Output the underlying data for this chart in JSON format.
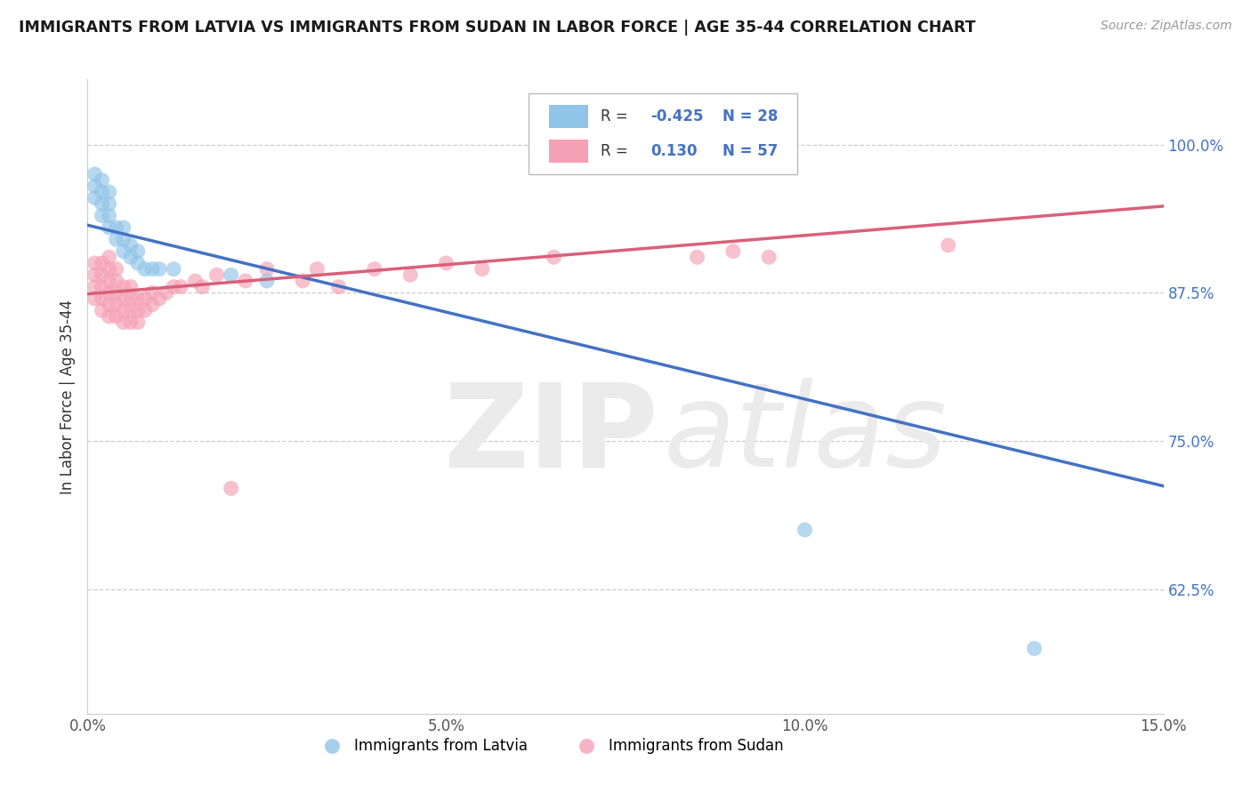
{
  "title": "IMMIGRANTS FROM LATVIA VS IMMIGRANTS FROM SUDAN IN LABOR FORCE | AGE 35-44 CORRELATION CHART",
  "source": "Source: ZipAtlas.com",
  "ylabel": "In Labor Force | Age 35-44",
  "xlim": [
    0.0,
    0.15
  ],
  "ylim": [
    0.52,
    1.055
  ],
  "yticks": [
    0.625,
    0.75,
    0.875,
    1.0
  ],
  "ytick_labels": [
    "62.5%",
    "75.0%",
    "87.5%",
    "100.0%"
  ],
  "xticks": [
    0.0,
    0.05,
    0.1,
    0.15
  ],
  "xtick_labels": [
    "0.0%",
    "5.0%",
    "10.0%",
    "15.0%"
  ],
  "latvia_color": "#90C4E8",
  "sudan_color": "#F4A0B5",
  "latvia_line_color": "#4472C4",
  "sudan_line_color": "#D9607A",
  "latvia_R": -0.425,
  "latvia_N": 28,
  "sudan_R": 0.13,
  "sudan_N": 57,
  "background_color": "#FFFFFF",
  "grid_color": "#CCCCCC",
  "lv_line_x0": 0.0,
  "lv_line_y0": 0.932,
  "lv_line_x1": 0.15,
  "lv_line_y1": 0.712,
  "sd_line_x0": 0.0,
  "sd_line_y0": 0.874,
  "sd_line_x1": 0.15,
  "sd_line_y1": 0.948,
  "lv_x": [
    0.001,
    0.001,
    0.001,
    0.002,
    0.002,
    0.002,
    0.002,
    0.003,
    0.003,
    0.003,
    0.003,
    0.004,
    0.004,
    0.005,
    0.005,
    0.005,
    0.006,
    0.006,
    0.007,
    0.007,
    0.008,
    0.009,
    0.01,
    0.012,
    0.02,
    0.025,
    0.1,
    0.132
  ],
  "lv_y": [
    0.955,
    0.965,
    0.975,
    0.94,
    0.95,
    0.96,
    0.97,
    0.93,
    0.94,
    0.95,
    0.96,
    0.92,
    0.93,
    0.91,
    0.92,
    0.93,
    0.905,
    0.915,
    0.9,
    0.91,
    0.895,
    0.895,
    0.895,
    0.895,
    0.89,
    0.885,
    0.675,
    0.575
  ],
  "sd_x": [
    0.001,
    0.001,
    0.001,
    0.001,
    0.002,
    0.002,
    0.002,
    0.002,
    0.002,
    0.003,
    0.003,
    0.003,
    0.003,
    0.003,
    0.003,
    0.004,
    0.004,
    0.004,
    0.004,
    0.004,
    0.005,
    0.005,
    0.005,
    0.005,
    0.006,
    0.006,
    0.006,
    0.006,
    0.007,
    0.007,
    0.007,
    0.008,
    0.008,
    0.009,
    0.009,
    0.01,
    0.011,
    0.012,
    0.013,
    0.015,
    0.016,
    0.018,
    0.02,
    0.022,
    0.025,
    0.03,
    0.032,
    0.035,
    0.04,
    0.045,
    0.05,
    0.055,
    0.065,
    0.085,
    0.09,
    0.095,
    0.12
  ],
  "sd_y": [
    0.87,
    0.88,
    0.89,
    0.9,
    0.86,
    0.87,
    0.88,
    0.89,
    0.9,
    0.855,
    0.865,
    0.875,
    0.885,
    0.895,
    0.905,
    0.855,
    0.865,
    0.875,
    0.885,
    0.895,
    0.85,
    0.86,
    0.87,
    0.88,
    0.85,
    0.86,
    0.87,
    0.88,
    0.85,
    0.86,
    0.87,
    0.86,
    0.87,
    0.865,
    0.875,
    0.87,
    0.875,
    0.88,
    0.88,
    0.885,
    0.88,
    0.89,
    0.71,
    0.885,
    0.895,
    0.885,
    0.895,
    0.88,
    0.895,
    0.89,
    0.9,
    0.895,
    0.905,
    0.905,
    0.91,
    0.905,
    0.915
  ]
}
